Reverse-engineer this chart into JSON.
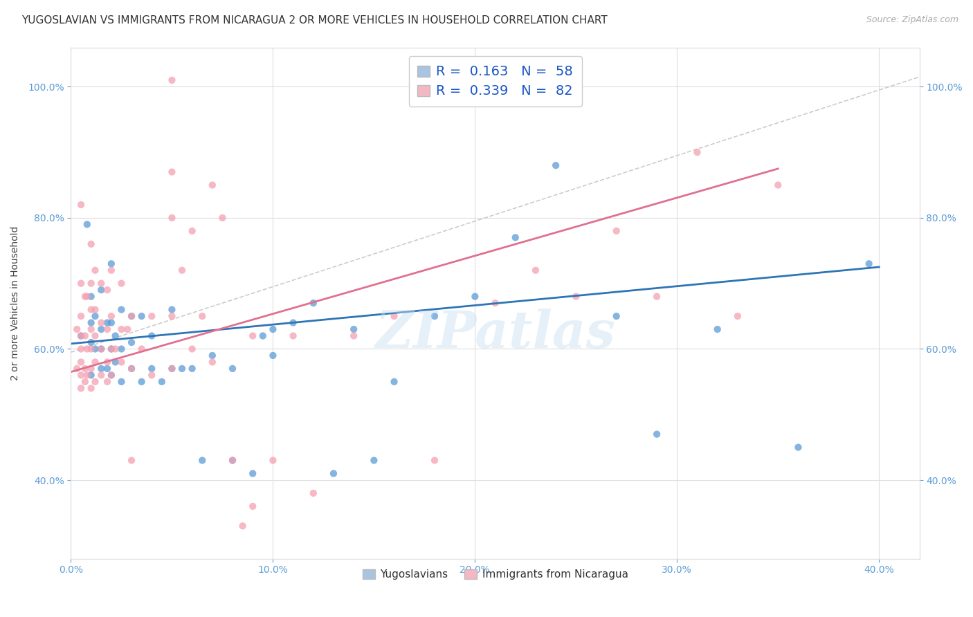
{
  "title": "YUGOSLAVIAN VS IMMIGRANTS FROM NICARAGUA 2 OR MORE VEHICLES IN HOUSEHOLD CORRELATION CHART",
  "source": "Source: ZipAtlas.com",
  "ylabel": "2 or more Vehicles in Household",
  "x_tick_labels": [
    "0.0%",
    "10.0%",
    "20.0%",
    "30.0%",
    "40.0%"
  ],
  "y_tick_labels": [
    "40.0%",
    "60.0%",
    "80.0%",
    "100.0%"
  ],
  "xlim": [
    0.0,
    0.42
  ],
  "ylim": [
    0.28,
    1.06
  ],
  "legend_bottom": [
    "Yugoslavians",
    "Immigrants from Nicaragua"
  ],
  "blue_scatter_x": [
    0.005,
    0.008,
    0.01,
    0.01,
    0.01,
    0.01,
    0.012,
    0.012,
    0.015,
    0.015,
    0.015,
    0.015,
    0.018,
    0.018,
    0.02,
    0.02,
    0.02,
    0.02,
    0.022,
    0.022,
    0.025,
    0.025,
    0.025,
    0.03,
    0.03,
    0.03,
    0.035,
    0.035,
    0.04,
    0.04,
    0.045,
    0.05,
    0.05,
    0.055,
    0.06,
    0.065,
    0.07,
    0.08,
    0.08,
    0.09,
    0.095,
    0.1,
    0.1,
    0.11,
    0.12,
    0.13,
    0.14,
    0.15,
    0.16,
    0.18,
    0.2,
    0.22,
    0.24,
    0.27,
    0.29,
    0.32,
    0.36,
    0.395
  ],
  "blue_scatter_y": [
    0.62,
    0.79,
    0.56,
    0.61,
    0.64,
    0.68,
    0.6,
    0.65,
    0.57,
    0.6,
    0.63,
    0.69,
    0.57,
    0.64,
    0.56,
    0.6,
    0.64,
    0.73,
    0.58,
    0.62,
    0.55,
    0.6,
    0.66,
    0.57,
    0.61,
    0.65,
    0.55,
    0.65,
    0.57,
    0.62,
    0.55,
    0.57,
    0.66,
    0.57,
    0.57,
    0.43,
    0.59,
    0.43,
    0.57,
    0.41,
    0.62,
    0.59,
    0.63,
    0.64,
    0.67,
    0.41,
    0.63,
    0.43,
    0.55,
    0.65,
    0.68,
    0.77,
    0.88,
    0.65,
    0.47,
    0.63,
    0.45,
    0.73
  ],
  "pink_scatter_x": [
    0.003,
    0.003,
    0.005,
    0.005,
    0.005,
    0.005,
    0.005,
    0.005,
    0.005,
    0.005,
    0.007,
    0.007,
    0.007,
    0.007,
    0.008,
    0.008,
    0.008,
    0.01,
    0.01,
    0.01,
    0.01,
    0.01,
    0.01,
    0.01,
    0.012,
    0.012,
    0.012,
    0.012,
    0.012,
    0.015,
    0.015,
    0.015,
    0.015,
    0.018,
    0.018,
    0.018,
    0.018,
    0.02,
    0.02,
    0.02,
    0.02,
    0.022,
    0.025,
    0.025,
    0.025,
    0.028,
    0.03,
    0.03,
    0.03,
    0.035,
    0.04,
    0.04,
    0.05,
    0.05,
    0.06,
    0.07,
    0.08,
    0.09,
    0.1,
    0.11,
    0.12,
    0.14,
    0.16,
    0.18,
    0.21,
    0.23,
    0.25,
    0.27,
    0.29,
    0.31,
    0.33,
    0.35,
    0.05,
    0.05,
    0.05,
    0.055,
    0.06,
    0.065,
    0.07,
    0.075,
    0.085,
    0.09
  ],
  "pink_scatter_y": [
    0.57,
    0.63,
    0.54,
    0.56,
    0.58,
    0.6,
    0.62,
    0.65,
    0.7,
    0.82,
    0.55,
    0.57,
    0.62,
    0.68,
    0.56,
    0.6,
    0.68,
    0.54,
    0.57,
    0.6,
    0.63,
    0.66,
    0.7,
    0.76,
    0.55,
    0.58,
    0.62,
    0.66,
    0.72,
    0.56,
    0.6,
    0.64,
    0.7,
    0.55,
    0.58,
    0.63,
    0.69,
    0.56,
    0.6,
    0.65,
    0.72,
    0.6,
    0.58,
    0.63,
    0.7,
    0.63,
    0.43,
    0.57,
    0.65,
    0.6,
    0.56,
    0.65,
    0.57,
    0.65,
    0.6,
    0.58,
    0.43,
    0.62,
    0.43,
    0.62,
    0.38,
    0.62,
    0.65,
    0.43,
    0.67,
    0.72,
    0.68,
    0.78,
    0.68,
    0.9,
    0.65,
    0.85,
    0.8,
    0.87,
    1.01,
    0.72,
    0.78,
    0.65,
    0.85,
    0.8,
    0.33,
    0.36
  ],
  "blue_line_x": [
    0.0,
    0.4
  ],
  "blue_line_y": [
    0.608,
    0.725
  ],
  "pink_line_x": [
    0.0,
    0.35
  ],
  "pink_line_y": [
    0.565,
    0.875
  ],
  "diag_line_x": [
    0.0,
    0.42
  ],
  "diag_line_y": [
    0.595,
    1.015
  ],
  "blue_color": "#5b9bd5",
  "pink_color": "#f4a0b0",
  "blue_line_color": "#2e75b6",
  "pink_line_color": "#e07090",
  "diag_color": "#cccccc",
  "watermark": "ZIPatlas",
  "title_fontsize": 11,
  "axis_fontsize": 10,
  "tick_fontsize": 10,
  "source_fontsize": 9,
  "scatter_alpha": 0.75,
  "scatter_size": 55,
  "legend_R1": "R = ",
  "legend_V1": "0.163",
  "legend_N1": "N = ",
  "legend_NV1": "58",
  "legend_R2": "R = ",
  "legend_V2": "0.339",
  "legend_N2": "N = ",
  "legend_NV2": "82"
}
